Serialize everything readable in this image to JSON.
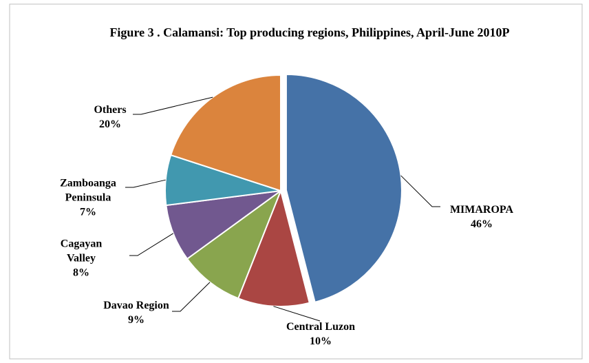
{
  "chart_data": {
    "type": "pie",
    "title": "Figure 3 . Calamansi: Top producing regions, Philippines, April-June 2010P",
    "categories": [
      "MIMAROPA",
      "Central Luzon",
      "Davao Region",
      "Cagayan Valley",
      "Zamboanga Peninsula",
      "Others"
    ],
    "values": [
      46,
      10,
      9,
      8,
      7,
      20
    ],
    "value_labels": [
      "46%",
      "10%",
      "9%",
      "8%",
      "7%",
      "20%"
    ],
    "colors": [
      "#4572a7",
      "#aa4643",
      "#89a54e",
      "#71588f",
      "#4198af",
      "#db843d"
    ]
  }
}
